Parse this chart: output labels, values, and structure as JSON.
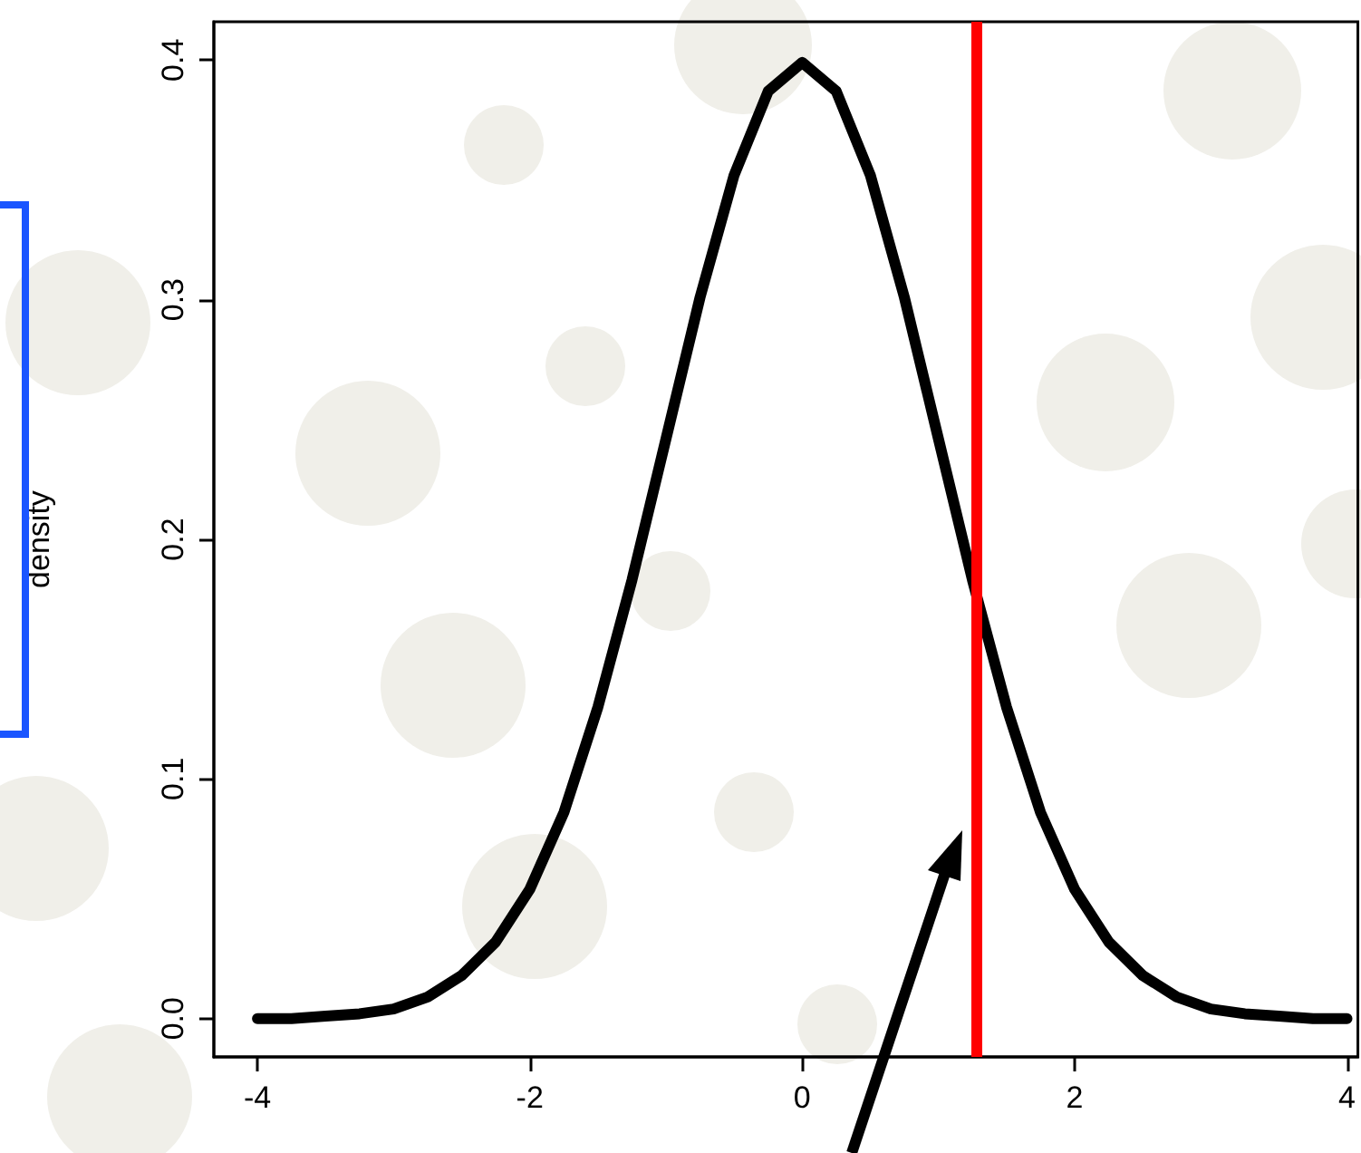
{
  "chart_data": {
    "type": "line",
    "ylabel": "density",
    "x": [
      -4,
      -3.75,
      -3.5,
      -3.25,
      -3,
      -2.75,
      -2.5,
      -2.25,
      -2,
      -1.75,
      -1.5,
      -1.25,
      -1,
      -0.75,
      -0.5,
      -0.25,
      0,
      0.25,
      0.5,
      0.75,
      1,
      1.25,
      1.5,
      1.75,
      2,
      2.25,
      2.5,
      2.75,
      3,
      3.25,
      3.5,
      3.75,
      4
    ],
    "series": [
      {
        "color": "#000000",
        "values": [
          0.0,
          0.0,
          0.001,
          0.002,
          0.004,
          0.009,
          0.018,
          0.032,
          0.054,
          0.086,
          0.13,
          0.183,
          0.242,
          0.301,
          0.352,
          0.387,
          0.399,
          0.387,
          0.352,
          0.301,
          0.242,
          0.183,
          0.13,
          0.086,
          0.054,
          0.032,
          0.018,
          0.009,
          0.004,
          0.002,
          0.001,
          0.0,
          0.0
        ]
      }
    ],
    "xlim": [
      -4.32,
      4.08
    ],
    "xticks": [
      -4,
      -2,
      0,
      2,
      4
    ],
    "ylim": [
      -0.016,
      0.416
    ],
    "yticks": [
      {
        "value": 0,
        "label": "0.0"
      },
      {
        "value": 0.1,
        "label": "0.1"
      },
      {
        "value": 0.2,
        "label": "0.2"
      },
      {
        "value": 0.3,
        "label": "0.3"
      },
      {
        "value": 0.4,
        "label": "0.4"
      }
    ],
    "ref_lines": [
      {
        "axis": "x",
        "value": 1.28,
        "color": "#ff0000"
      }
    ],
    "grid": false,
    "marker": "none",
    "line_style": "solid"
  }
}
